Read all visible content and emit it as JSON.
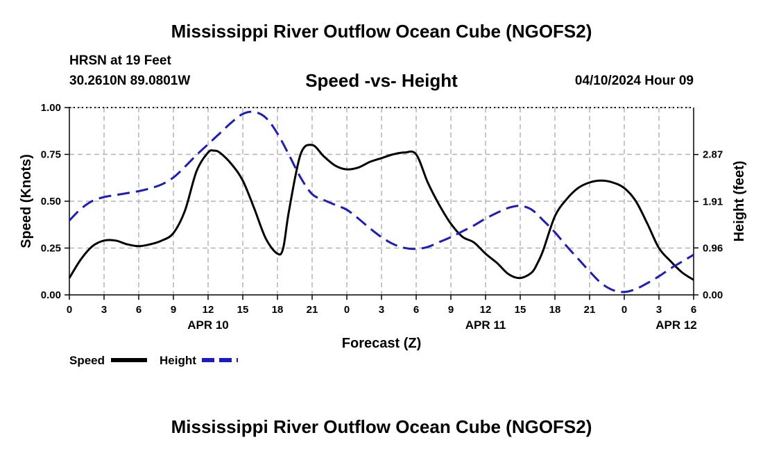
{
  "header": {
    "title": "Mississippi River Outflow Ocean Cube (NGOFS2)",
    "station": "HRSN at 19 Feet",
    "coords": "30.2610N  89.0801W",
    "subtitle": "Speed -vs- Height",
    "datetime": "04/10/2024 Hour 09"
  },
  "footer": {
    "title": "Mississippi River Outflow Ocean Cube (NGOFS2)"
  },
  "chart_data": {
    "type": "line",
    "title": "Speed -vs- Height",
    "xlabel": "Forecast (Z)",
    "ylabel": "Speed (Knots)",
    "y2label": "Height (feet)",
    "x_range": [
      0,
      54
    ],
    "ylim": [
      0,
      1.0
    ],
    "y2lim": [
      0,
      3.83
    ],
    "x_ticks": [
      0,
      3,
      6,
      9,
      12,
      15,
      18,
      21,
      24,
      27,
      30,
      33,
      36,
      39,
      42,
      45,
      48,
      51,
      54
    ],
    "x_tick_labels": [
      "0",
      "3",
      "6",
      "9",
      "12",
      "15",
      "18",
      "21",
      "0",
      "3",
      "6",
      "9",
      "12",
      "15",
      "18",
      "21",
      "0",
      "3",
      "6"
    ],
    "date_labels": [
      {
        "x": 12,
        "label": "APR 10"
      },
      {
        "x": 36,
        "label": "APR 11"
      },
      {
        "x": 52.5,
        "label": "APR 12"
      }
    ],
    "y_ticks": [
      0.0,
      0.25,
      0.5,
      0.75,
      1.0
    ],
    "y_tick_labels": [
      "0.00",
      "0.25",
      "0.50",
      "0.75",
      "1.00"
    ],
    "y2_ticks": [
      0.0,
      0.96,
      1.91,
      2.87
    ],
    "y2_tick_labels": [
      "0.00",
      "0.96",
      "1.91",
      "2.87"
    ],
    "grid": true,
    "legend_position": "bottom-left",
    "series": [
      {
        "name": "Speed",
        "axis": "left",
        "color": "#000000",
        "dash": "solid",
        "x": [
          0,
          1,
          2,
          3,
          4,
          5,
          6,
          7,
          8,
          9,
          10,
          11,
          12,
          12.5,
          13,
          14,
          15,
          16,
          17,
          18,
          18.5,
          19,
          20,
          21,
          22,
          23,
          24,
          25,
          26,
          27,
          28,
          29,
          30,
          31,
          32,
          33,
          34,
          35,
          36,
          37,
          38,
          39,
          40,
          40.5,
          41,
          42,
          43,
          44,
          45,
          46,
          47,
          48,
          49,
          50,
          51,
          52,
          53,
          54
        ],
        "values": [
          0.09,
          0.19,
          0.26,
          0.29,
          0.29,
          0.27,
          0.26,
          0.27,
          0.29,
          0.33,
          0.45,
          0.66,
          0.76,
          0.77,
          0.76,
          0.7,
          0.61,
          0.46,
          0.3,
          0.22,
          0.25,
          0.45,
          0.75,
          0.8,
          0.74,
          0.69,
          0.67,
          0.68,
          0.71,
          0.73,
          0.75,
          0.76,
          0.75,
          0.6,
          0.48,
          0.38,
          0.31,
          0.28,
          0.22,
          0.17,
          0.11,
          0.09,
          0.12,
          0.17,
          0.24,
          0.42,
          0.51,
          0.57,
          0.6,
          0.61,
          0.6,
          0.57,
          0.5,
          0.38,
          0.25,
          0.18,
          0.12,
          0.08
        ]
      },
      {
        "name": "Height",
        "axis": "right",
        "color": "#1a1acc",
        "dash": "dashed",
        "x": [
          0,
          1,
          2,
          3,
          4,
          5,
          6,
          7,
          8,
          9,
          10,
          11,
          12,
          13,
          14,
          15,
          16,
          17,
          18,
          19,
          20,
          21,
          22,
          23,
          24,
          25,
          26,
          27,
          28,
          29,
          30,
          31,
          32,
          33,
          34,
          35,
          36,
          37,
          38,
          39,
          40,
          41,
          42,
          43,
          44,
          45,
          46,
          47,
          48,
          49,
          50,
          51,
          52,
          53,
          54
        ],
        "values": [
          1.52,
          1.76,
          1.92,
          2.0,
          2.04,
          2.08,
          2.12,
          2.18,
          2.26,
          2.4,
          2.62,
          2.86,
          3.08,
          3.3,
          3.52,
          3.7,
          3.74,
          3.62,
          3.3,
          2.86,
          2.4,
          2.06,
          1.94,
          1.84,
          1.74,
          1.56,
          1.36,
          1.18,
          1.04,
          0.96,
          0.94,
          0.98,
          1.08,
          1.18,
          1.3,
          1.42,
          1.56,
          1.68,
          1.78,
          1.82,
          1.74,
          1.52,
          1.28,
          1.0,
          0.74,
          0.48,
          0.24,
          0.1,
          0.06,
          0.12,
          0.24,
          0.38,
          0.54,
          0.68,
          0.82
        ]
      }
    ],
    "legend": [
      {
        "label": "Speed",
        "color": "#000000",
        "dash": "solid"
      },
      {
        "label": "Height",
        "color": "#1a1acc",
        "dash": "dashed"
      }
    ]
  }
}
